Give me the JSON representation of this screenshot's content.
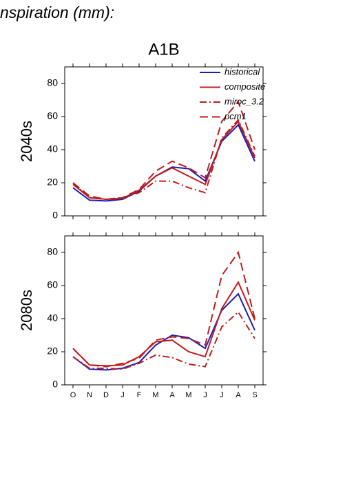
{
  "title": "nspiration (mm):",
  "chart_data": [
    {
      "type": "line",
      "title": "A1B",
      "y_label": "2040s",
      "categories": [
        null,
        null,
        null,
        null,
        null,
        null,
        null,
        null,
        null,
        null,
        null,
        null
      ],
      "ylim": [
        0,
        90
      ],
      "yticks": [
        0,
        20,
        40,
        60,
        80
      ],
      "legend": "upper right",
      "series": [
        {
          "name": "historical",
          "color": "#1c1cb8",
          "line_style": "solid",
          "values": [
            17,
            9.5,
            9,
            10,
            15,
            24,
            29.5,
            28.5,
            21,
            45,
            55,
            33
          ]
        },
        {
          "name": "composite",
          "color": "#c01c1c",
          "line_style": "solid",
          "values": [
            19,
            11,
            10,
            10.5,
            15.5,
            24,
            29,
            24,
            19,
            46,
            57,
            35
          ]
        },
        {
          "name": "miroc_3.2",
          "color": "#c01c1c",
          "line_style": "dashdot",
          "values": [
            20,
            11,
            10,
            11,
            14,
            21,
            21,
            17,
            14,
            47,
            58,
            36
          ]
        },
        {
          "name": "pcm1",
          "color": "#c01c1c",
          "line_style": "dashed",
          "values": [
            20,
            12,
            10,
            11,
            16,
            27,
            33,
            29,
            23,
            57,
            69,
            40
          ]
        }
      ]
    },
    {
      "type": "line",
      "y_label": "2080s",
      "categories": [
        "O",
        "N",
        "D",
        "J",
        "F",
        "M",
        "A",
        "M",
        "J",
        "J",
        "A",
        "S"
      ],
      "ylim": [
        0,
        90
      ],
      "yticks": [
        0,
        20,
        40,
        60,
        80
      ],
      "series": [
        {
          "color": "#1c1cb8",
          "line_style": "solid",
          "values": [
            17,
            9.5,
            9,
            10,
            13.5,
            24,
            30,
            28.5,
            22,
            45,
            55,
            33
          ]
        },
        {
          "color": "#c01c1c",
          "line_style": "solid",
          "values": [
            22,
            12,
            11.5,
            12,
            17,
            26,
            27,
            20,
            17,
            46,
            62,
            39
          ]
        },
        {
          "color": "#c01c1c",
          "line_style": "dashdot",
          "values": [
            17,
            10,
            10,
            9.5,
            13,
            18,
            16.5,
            12.5,
            11,
            35,
            44,
            28
          ]
        },
        {
          "color": "#c01c1c",
          "line_style": "dashed",
          "values": [
            22,
            12,
            11,
            13,
            16,
            27,
            29,
            28,
            24,
            66,
            80,
            40
          ]
        }
      ]
    }
  ]
}
